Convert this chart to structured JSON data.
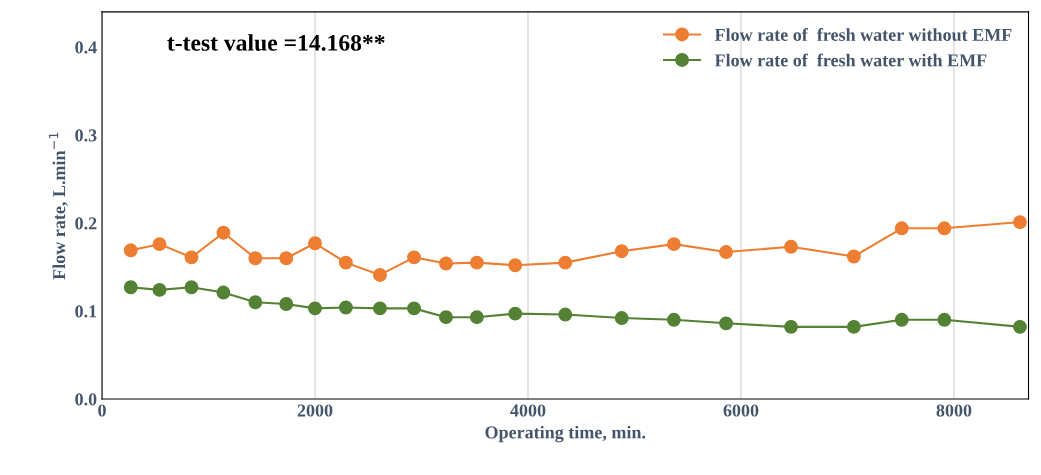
{
  "chart_data": {
    "type": "line",
    "xlabel": "Operating time, min.",
    "ylabel": "Flow rate, L.min$^{−1}$",
    "annotations": [
      "t-test value =14.168**"
    ],
    "x": [
      270,
      540,
      840,
      1140,
      1440,
      1730,
      2000,
      2290,
      2610,
      2930,
      3230,
      3520,
      3880,
      4350,
      4880,
      5370,
      5860,
      6470,
      7060,
      7510,
      7910,
      8620
    ],
    "series": [
      {
        "name": "Flow rate of  fresh water without EMF",
        "color": "#ed7d31",
        "values": [
          0.169,
          0.176,
          0.161,
          0.189,
          0.16,
          0.16,
          0.177,
          0.155,
          0.141,
          0.161,
          0.154,
          0.155,
          0.152,
          0.155,
          0.168,
          0.176,
          0.167,
          0.173,
          0.162,
          0.194,
          0.194,
          0.201
        ]
      },
      {
        "name": "Flow rate of  fresh water with EMF",
        "color": "#548235",
        "values": [
          0.127,
          0.124,
          0.127,
          0.121,
          0.11,
          0.108,
          0.103,
          0.104,
          0.103,
          0.103,
          0.093,
          0.093,
          0.097,
          0.096,
          0.092,
          0.09,
          0.086,
          0.082,
          0.082,
          0.09,
          0.09,
          0.082
        ]
      }
    ],
    "xlim": [
      0,
      8700
    ],
    "xticks": [
      0,
      2000,
      4000,
      6000,
      8000
    ],
    "ylim": [
      0,
      0.44
    ],
    "yticks": [
      {
        "value": 0,
        "label": "0.0"
      },
      0.1,
      0.2,
      0.3,
      0.4
    ],
    "grid": "x",
    "legend": "top right",
    "marker": "circle",
    "line_style": "solid"
  }
}
